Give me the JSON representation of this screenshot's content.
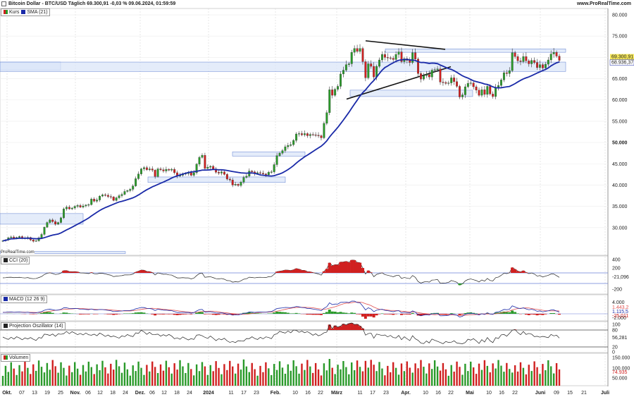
{
  "header": {
    "title": "Bitcoin Dollar - BTC/USD Täglich 69.300,91 -0,03 % 09.06.2024, 01:59:59",
    "brand": "www.ProRealTime.com",
    "copyright": "ProRealTime.com"
  },
  "colors": {
    "up": "#2a9a2a",
    "down": "#d02020",
    "sma": "#1a2aa8",
    "zone": "#dbe6f8",
    "zone_border": "#5f7fd0",
    "macd": "#1a2aa8",
    "signal": "#e05050",
    "last_price_bg": "#f4e65a"
  },
  "legends": {
    "price": [
      "Kurs",
      "SMA (21)"
    ],
    "cci": "CCI (20)",
    "macd": "MACD (12 26 9)",
    "proj": "Projection Oszillator (14)",
    "vol": "Volumen"
  },
  "chart_data": [
    {
      "type": "candlestick",
      "title": "Bitcoin Dollar - BTC/USD Täglich",
      "y_ticks": [
        "80.000",
        "75.000",
        "70.000",
        "65.000",
        "60.000",
        "55.000",
        "50.000",
        "45.000",
        "40.000",
        "35.000",
        "30.000"
      ],
      "ylim": [
        23500,
        81500
      ],
      "x_labels": [
        "Okt.",
        "07",
        "13",
        "19",
        "25",
        "Nov.",
        "06",
        "12",
        "18",
        "24",
        "Dez.",
        "06",
        "12",
        "18",
        "24",
        "2024",
        "11",
        "17",
        "23",
        "Feb.",
        "10",
        "16",
        "22",
        "März",
        "11",
        "17",
        "23",
        "Apr.",
        "10",
        "16",
        "22",
        "Mai",
        "10",
        "16",
        "22",
        "Juni",
        "09",
        "15",
        "21",
        "Juli"
      ],
      "last_price": "69.300,91",
      "sma_value": "68.936,37",
      "closes": [
        26900,
        27100,
        27600,
        27800,
        27500,
        27700,
        27900,
        27600,
        27400,
        27700,
        27100,
        26800,
        26900,
        27600,
        28400,
        30100,
        31200,
        31800,
        31400,
        30800,
        31200,
        32300,
        34400,
        34800,
        34400,
        34600,
        35000,
        35200,
        34800,
        35100,
        35300,
        35400,
        36700,
        36200,
        36500,
        37400,
        37700,
        37600,
        37300,
        37200,
        36400,
        37000,
        37500,
        37800,
        38500,
        38700,
        39000,
        39800,
        41500,
        42600,
        43800,
        44100,
        43600,
        43800,
        43500,
        42000,
        43800,
        43600,
        43300,
        43700,
        43500,
        43700,
        42900,
        42100,
        42300,
        42700,
        42700,
        42900,
        42300,
        42900,
        44900,
        46500,
        47000,
        43900,
        44200,
        44400,
        43800,
        43000,
        42800,
        43100,
        42500,
        41400,
        41200,
        40000,
        40200,
        39900,
        40700,
        41800,
        42100,
        43300,
        43100,
        42700,
        42900,
        42800,
        42600,
        42400,
        43000,
        43100,
        44800,
        46900,
        47500,
        48100,
        49000,
        49300,
        49500,
        50500,
        52000,
        52100,
        51800,
        52100,
        51600,
        51900,
        51800,
        51700,
        51600,
        51100,
        54500,
        57000,
        62400,
        61100,
        62500,
        63200,
        66100,
        67000,
        68300,
        68500,
        71200,
        72100,
        71400,
        72100,
        69000,
        65200,
        68500,
        67900,
        65400,
        67900,
        69400,
        70700,
        70000,
        69900,
        69800,
        69500,
        70700,
        71300,
        69000,
        69700,
        69300,
        68800,
        71100,
        69600,
        66200,
        64900,
        65700,
        66000,
        65400,
        67000,
        67100,
        67300,
        64200,
        64100,
        63900,
        64000,
        65200,
        64300,
        63200,
        60700,
        61200,
        63100,
        63900,
        64000,
        63100,
        62300,
        61100,
        62400,
        61300,
        63200,
        61400,
        60800,
        63000,
        63400,
        64700,
        66400,
        66200,
        66900,
        71100,
        70200,
        69200,
        69000,
        70200,
        69200,
        68500,
        69300,
        68800,
        67600,
        68300,
        67500,
        68400,
        69400,
        70800,
        71200,
        70300,
        69300
      ]
    },
    {
      "type": "line",
      "title": "CCI (20)",
      "y_ticks": [
        "400",
        "200",
        "-200"
      ],
      "value_label": "-21,096"
    },
    {
      "type": "line",
      "title": "MACD (12 26 9)",
      "y_ticks": [
        "4.000",
        "-2.000"
      ],
      "value_labels": [
        "1.443,2",
        "1.115,5",
        "-25,011"
      ]
    },
    {
      "type": "line",
      "title": "Projection Oszillator (14)",
      "y_ticks": [
        "100",
        "80",
        "20",
        "0"
      ],
      "value_label": "56,281"
    },
    {
      "type": "bar",
      "title": "Volumen",
      "y_ticks": [
        "150.000",
        "100.000",
        "50.000"
      ],
      "value_label": "74.935"
    }
  ]
}
